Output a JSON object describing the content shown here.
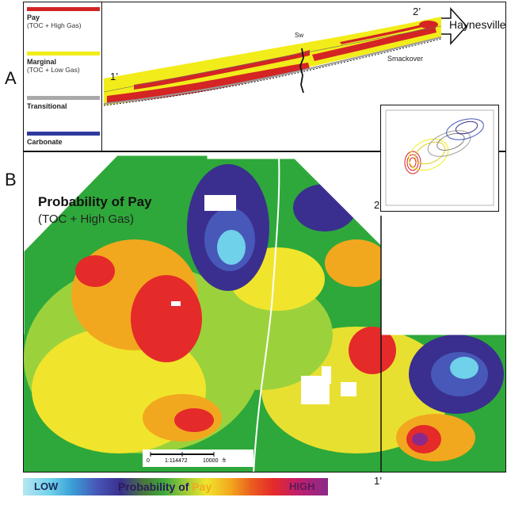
{
  "panel_labels": {
    "a": "A",
    "b": "B"
  },
  "legend": {
    "items": [
      {
        "label": "Pay",
        "sub": "(TOC + High Gas)",
        "color": "#d42424"
      },
      {
        "label": "Marginal",
        "sub": "(TOC + Low Gas)",
        "color": "#f2ec1a"
      },
      {
        "label": "Transitional",
        "sub": "",
        "color": "#a9a9a9"
      },
      {
        "label": "Carbonate",
        "sub": "",
        "color": "#2e3a9e"
      }
    ]
  },
  "cross_section": {
    "left_label": "1’",
    "right_label": "2’",
    "well_label": "Sw",
    "formation_label": "Smackover",
    "arrow_label": "Haynesville"
  },
  "map": {
    "title": "Probability of Pay",
    "subtitle": "(TOC + High Gas)",
    "top_line_label": "2’",
    "bottom_line_label": "1’",
    "scale_start": "0",
    "scale_ratio": "1:114472",
    "scale_end": "10000",
    "scale_unit": "ft"
  },
  "colorbar": {
    "low": "LOW",
    "middle_a": "Probability of ",
    "middle_b": "Pay",
    "high": "HIGH",
    "colors": {
      "low": "#3a2f8e",
      "pay": "#f2a81e",
      "high": "#6a2a8a"
    }
  }
}
